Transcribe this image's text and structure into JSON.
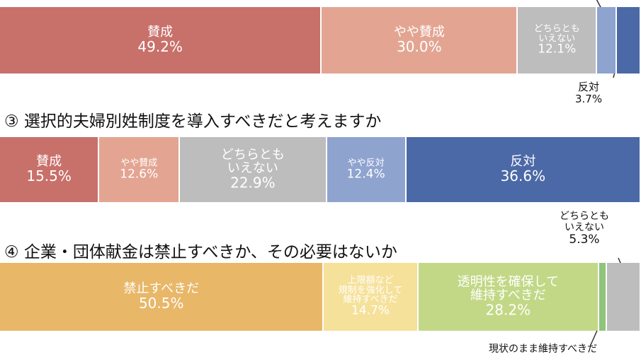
{
  "chart_data": [
    {
      "type": "bar",
      "stacked": true,
      "orientation": "horizontal",
      "title": "",
      "series": [
        {
          "name": "賛成",
          "value": 49.2,
          "label_lines": [
            "賛成"
          ],
          "value_label": "49.2%",
          "color": "#c8706a"
        },
        {
          "name": "やや賛成",
          "value": 30.0,
          "label_lines": [
            "やや賛成"
          ],
          "value_label": "30.0%",
          "color": "#e3a592"
        },
        {
          "name": "どちらともいえない",
          "value": 12.1,
          "label_lines": [
            "どちらとも",
            "いえない"
          ],
          "value_label": "12.1%",
          "color": "#bdbdbd"
        },
        {
          "name": "やや反対",
          "value": 3.0,
          "label_lines": [],
          "value_label": "",
          "color": "#8fa3cf"
        },
        {
          "name": "反対",
          "value": 3.7,
          "label_lines": [],
          "value_label": "",
          "color": "#4b69a6"
        }
      ],
      "callouts": [
        {
          "text_lines": [
            "反対",
            "3.7%"
          ]
        }
      ]
    },
    {
      "type": "bar",
      "stacked": true,
      "orientation": "horizontal",
      "title": "③ 選択的夫婦別姓制度を導入すべきだと考えますか",
      "series": [
        {
          "name": "賛成",
          "value": 15.5,
          "label_lines": [
            "賛成"
          ],
          "value_label": "15.5%",
          "color": "#c8706a"
        },
        {
          "name": "やや賛成",
          "value": 12.6,
          "label_lines": [
            "やや賛成"
          ],
          "value_label": "12.6%",
          "color": "#e3a592"
        },
        {
          "name": "どちらともいえない",
          "value": 22.9,
          "label_lines": [
            "どちらとも",
            "いえない"
          ],
          "value_label": "22.9%",
          "color": "#bdbdbd"
        },
        {
          "name": "やや反対",
          "value": 12.4,
          "label_lines": [
            "やや反対"
          ],
          "value_label": "12.4%",
          "color": "#8fa3cf"
        },
        {
          "name": "反対",
          "value": 36.6,
          "label_lines": [
            "反対"
          ],
          "value_label": "36.6%",
          "color": "#4b69a6"
        }
      ],
      "callouts": []
    },
    {
      "type": "bar",
      "stacked": true,
      "orientation": "horizontal",
      "title": "④ 企業・団体献金は禁止すべきか、その必要はないか",
      "series": [
        {
          "name": "禁止すべきだ",
          "value": 50.5,
          "label_lines": [
            "禁止すべきだ"
          ],
          "value_label": "50.5%",
          "color": "#e8b768"
        },
        {
          "name": "上限額など規制を強化して維持すべきだ",
          "value": 14.7,
          "label_lines": [
            "上限額など",
            "規制を強化して",
            "維持すべきだ"
          ],
          "value_label": "14.7%",
          "color": "#f6e19a"
        },
        {
          "name": "透明性を確保して維持すべきだ",
          "value": 28.2,
          "label_lines": [
            "透明性を確保して",
            "維持すべきだ"
          ],
          "value_label": "28.2%",
          "color": "#c2d886"
        },
        {
          "name": "現状のまま維持すべきだ",
          "value": 1.2,
          "label_lines": [],
          "value_label": "",
          "color": "#8fc47b"
        },
        {
          "name": "どちらともいえない",
          "value": 5.3,
          "label_lines": [],
          "value_label": "",
          "color": "#bdbdbd"
        }
      ],
      "callouts": [
        {
          "text_lines": [
            "どちらとも",
            "いえない",
            "5.3%"
          ]
        },
        {
          "text_lines": [
            "現状のまま維持すべきだ"
          ]
        }
      ]
    }
  ]
}
